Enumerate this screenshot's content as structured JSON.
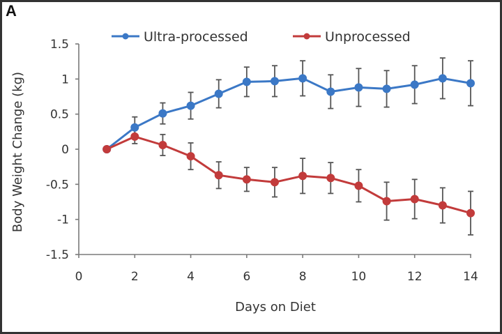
{
  "panel_label": "A",
  "chart_data": {
    "type": "line",
    "title": "",
    "xlabel": "Days on Diet",
    "ylabel": "Body Weight Change (kg)",
    "xlim": [
      0,
      14
    ],
    "ylim": [
      -1.5,
      1.5
    ],
    "xticks": [
      0,
      2,
      4,
      6,
      8,
      10,
      12,
      14
    ],
    "xtick_labels": [
      "0",
      "2",
      "4",
      "6",
      "8",
      "10",
      "12",
      "14"
    ],
    "yticks": [
      1.5,
      1,
      0.5,
      0,
      -0.5,
      -1,
      -1.5
    ],
    "ytick_labels": [
      "1.5",
      "1",
      "0.5",
      "0",
      "-0.5",
      "-1",
      "-1.5"
    ],
    "grid": false,
    "legend_position": "top",
    "x": [
      1,
      2,
      3,
      4,
      5,
      6,
      7,
      8,
      9,
      10,
      11,
      12,
      13,
      14
    ],
    "series": [
      {
        "name": "Ultra-processed",
        "color": "#3b78c6",
        "values": [
          0,
          0.31,
          0.51,
          0.62,
          0.79,
          0.96,
          0.97,
          1.01,
          0.82,
          0.88,
          0.86,
          0.92,
          1.01,
          0.94
        ],
        "errors": [
          0,
          0.15,
          0.15,
          0.19,
          0.2,
          0.21,
          0.22,
          0.25,
          0.24,
          0.27,
          0.26,
          0.27,
          0.29,
          0.32
        ]
      },
      {
        "name": "Unprocessed",
        "color": "#c23b3b",
        "values": [
          0,
          0.18,
          0.06,
          -0.1,
          -0.37,
          -0.43,
          -0.47,
          -0.38,
          -0.41,
          -0.52,
          -0.74,
          -0.71,
          -0.8,
          -0.91
        ],
        "errors": [
          0,
          0.1,
          0.15,
          0.19,
          0.19,
          0.17,
          0.21,
          0.25,
          0.22,
          0.23,
          0.27,
          0.28,
          0.25,
          0.31
        ]
      }
    ]
  }
}
